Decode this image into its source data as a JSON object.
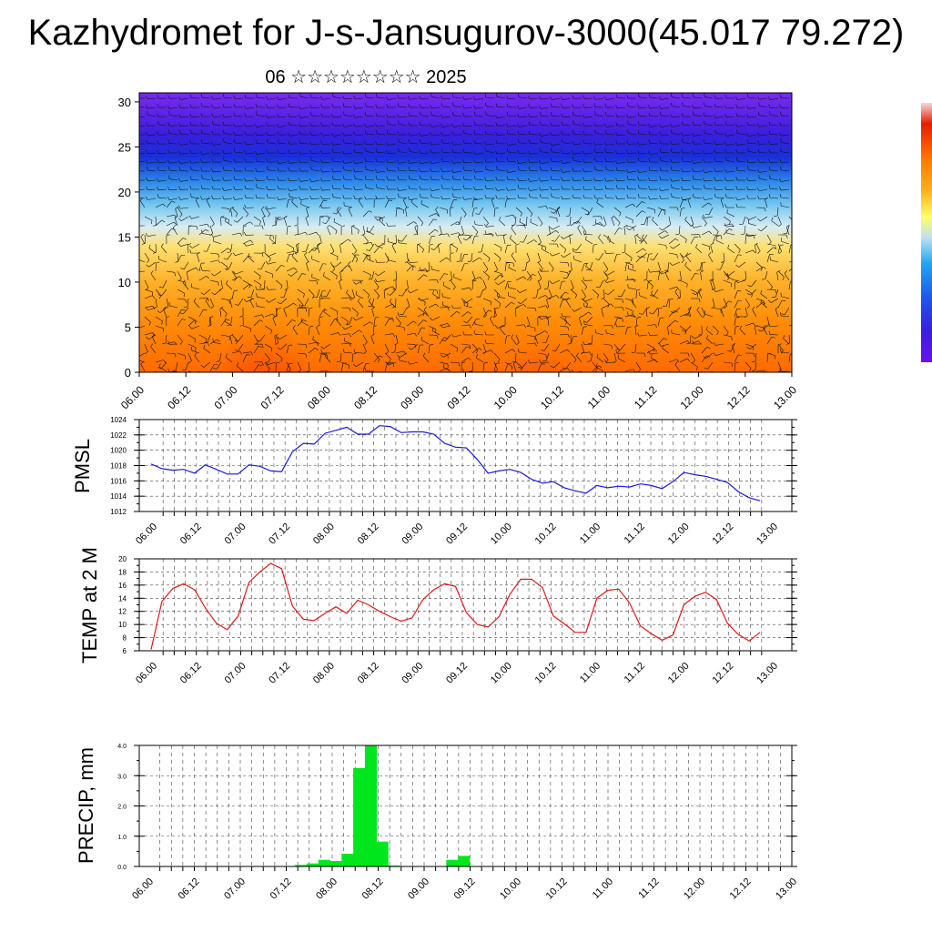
{
  "page": {
    "title": "Kazhydromet for J-s-Jansugurov-3000(45.017 79.272)",
    "subtitle": "06 ☆☆☆☆☆☆☆☆ 2025"
  },
  "colors": {
    "pmsl_line": "#1a1adc",
    "temp_line": "#e01818",
    "precip_bar": "#00e61c",
    "colorbar": [
      "#6a12e8",
      "#3a1edc",
      "#1e58e6",
      "#22a6f0",
      "#bfe0f2",
      "#ffff6a",
      "#ffb020",
      "#ff7a00",
      "#e81c00",
      "#f3d8d8"
    ]
  },
  "chart_data": [
    {
      "id": "cross-section",
      "type": "heatmap",
      "title": "",
      "xlabel": "",
      "ylabel": "",
      "ylim": [
        0,
        31
      ],
      "y_ticks": [
        "0",
        "5",
        "10",
        "15",
        "20",
        "25",
        "30"
      ],
      "x_ticks": [
        "06.00",
        "06.12",
        "07.00",
        "07.12",
        "08.00",
        "08.12",
        "09.00",
        "09.12",
        "10.00",
        "10.12",
        "11.00",
        "11.12",
        "12.00",
        "12.12",
        "13.00"
      ],
      "description_layers": [
        "filled color field (warm near ground, cold aloft)",
        "wind barbs"
      ]
    },
    {
      "id": "pmsl",
      "type": "line",
      "ylabel": "PMSL",
      "ylim": [
        1012,
        1024
      ],
      "y_ticks": [
        "1012",
        "1014",
        "1016",
        "1018",
        "1020",
        "1022",
        "1024"
      ],
      "x_ticks": [
        "06.00",
        "06.12",
        "07.00",
        "07.12",
        "08.00",
        "08.12",
        "09.00",
        "09.12",
        "10.00",
        "10.12",
        "11.00",
        "11.12",
        "12.00",
        "12.12",
        "13.00"
      ],
      "series": [
        {
          "values": [
            1018.2,
            1017.6,
            1017.4,
            1017.5,
            1017.0,
            1018.1,
            1017.5,
            1016.9,
            1016.9,
            1018.1,
            1017.9,
            1017.3,
            1017.2,
            1019.8,
            1020.9,
            1020.8,
            1022.2,
            1022.6,
            1023.0,
            1022.1,
            1022.1,
            1023.2,
            1023.1,
            1022.3,
            1022.4,
            1022.4,
            1022.1,
            1020.9,
            1020.4,
            1020.3,
            1018.8,
            1017.0,
            1017.3,
            1017.5,
            1017.1,
            1016.2,
            1015.7,
            1015.9,
            1015.1,
            1014.7,
            1014.4,
            1015.4,
            1015.1,
            1015.3,
            1015.2,
            1015.6,
            1015.4,
            1015.0,
            1015.9,
            1017.1,
            1016.8,
            1016.6,
            1016.2,
            1015.8,
            1014.6,
            1013.8,
            1013.4
          ]
        }
      ]
    },
    {
      "id": "temp2m",
      "type": "line",
      "ylabel": "TEMP at 2 M",
      "ylim": [
        6,
        20
      ],
      "y_ticks": [
        "6",
        "8",
        "10",
        "12",
        "14",
        "16",
        "18",
        "20"
      ],
      "x_ticks": [
        "06.00",
        "06.12",
        "07.00",
        "07.12",
        "08.00",
        "08.12",
        "09.00",
        "09.12",
        "10.00",
        "10.12",
        "11.00",
        "11.12",
        "12.00",
        "12.12",
        "13.00"
      ],
      "series": [
        {
          "values": [
            6.2,
            13.5,
            15.5,
            16.2,
            15.3,
            12.5,
            10.2,
            9.2,
            11.3,
            16.4,
            18.0,
            19.3,
            18.5,
            12.8,
            10.8,
            10.6,
            11.7,
            12.7,
            11.7,
            13.7,
            13.0,
            12.0,
            11.2,
            10.5,
            11.0,
            13.8,
            15.3,
            16.2,
            15.8,
            11.8,
            10.0,
            9.6,
            11.2,
            14.6,
            16.9,
            16.9,
            15.6,
            11.3,
            10.1,
            8.8,
            8.8,
            14.0,
            15.2,
            15.4,
            13.3,
            9.8,
            8.6,
            7.6,
            8.4,
            13.0,
            14.3,
            14.9,
            13.8,
            10.2,
            8.5,
            7.5,
            8.8
          ]
        }
      ]
    },
    {
      "id": "precip",
      "type": "bar",
      "ylabel": "PRECIP, mm",
      "ylim": [
        0,
        4.0
      ],
      "y_ticks": [
        "0.0",
        "1.0",
        "2.0",
        "3.0",
        "4.0"
      ],
      "x_ticks": [
        "06.00",
        "06.12",
        "07.00",
        "07.12",
        "08.00",
        "08.12",
        "09.00",
        "09.12",
        "10.00",
        "10.12",
        "11.00",
        "11.12",
        "12.00",
        "12.12",
        "13.00"
      ],
      "values": [
        0,
        0,
        0,
        0,
        0,
        0,
        0,
        0,
        0,
        0,
        0,
        0,
        0,
        0.05,
        0.1,
        0.22,
        0.18,
        0.42,
        3.25,
        4.0,
        0.82,
        0.03,
        0,
        0,
        0,
        0,
        0.22,
        0.35,
        0,
        0,
        0,
        0,
        0,
        0,
        0,
        0,
        0,
        0,
        0,
        0,
        0,
        0,
        0,
        0,
        0,
        0,
        0,
        0,
        0,
        0,
        0,
        0,
        0,
        0,
        0,
        0
      ]
    }
  ]
}
